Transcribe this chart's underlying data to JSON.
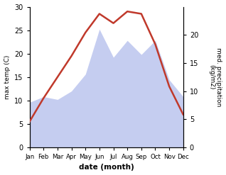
{
  "months": [
    "Jan",
    "Feb",
    "Mar",
    "Apr",
    "May",
    "Jun",
    "Jul",
    "Aug",
    "Sep",
    "Oct",
    "Nov",
    "Dec"
  ],
  "temperature": [
    5.5,
    10.5,
    15.0,
    19.5,
    24.5,
    28.5,
    26.5,
    29.0,
    28.5,
    22.0,
    13.0,
    7.0
  ],
  "precipitation": [
    8.0,
    9.0,
    8.5,
    10.0,
    13.0,
    21.0,
    16.0,
    19.0,
    16.5,
    19.0,
    12.0,
    9.0
  ],
  "temp_color": "#c0392b",
  "precip_fill_color": "#c5cdf0",
  "temp_ylim": [
    0,
    30
  ],
  "precip_ylim": [
    0,
    25
  ],
  "temp_yticks": [
    0,
    5,
    10,
    15,
    20,
    25,
    30
  ],
  "precip_yticks": [
    0,
    5,
    10,
    15,
    20
  ],
  "ylabel_left": "max temp (C)",
  "ylabel_right": "med. precipitation\n(kg/m2)",
  "xlabel": "date (month)",
  "bg_color": "#ffffff"
}
